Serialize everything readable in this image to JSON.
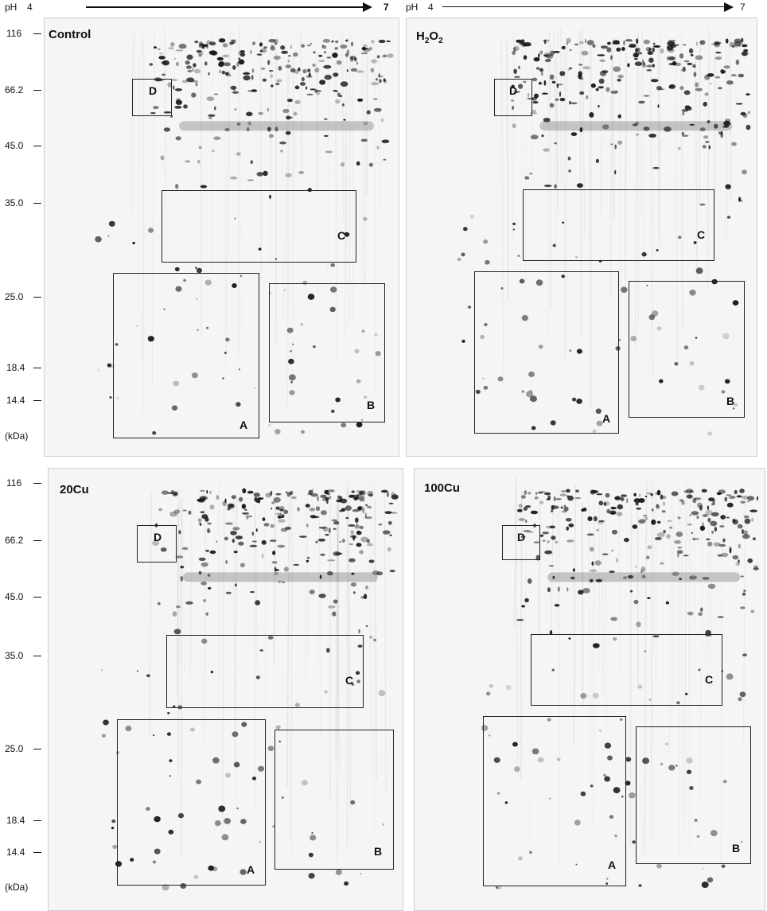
{
  "ph_axis": {
    "ph_label": "pH",
    "start": "4",
    "end": "7"
  },
  "mw_unit": "(kDa)",
  "mw_markers": [
    "116",
    "66.2",
    "45.0",
    "35.0",
    "25.0",
    "18.4",
    "14.4"
  ],
  "gels": [
    {
      "id": "control",
      "title": "Control",
      "boxes": [
        "D",
        "C",
        "A",
        "B"
      ]
    },
    {
      "id": "h2o2",
      "title_main": "H",
      "title_sub1": "2",
      "title_mid": "O",
      "title_sub2": "2",
      "boxes": [
        "D",
        "C",
        "A",
        "B"
      ]
    },
    {
      "id": "20cu",
      "title": "20Cu",
      "boxes": [
        "D",
        "C",
        "A",
        "B"
      ]
    },
    {
      "id": "100cu",
      "title": "100Cu",
      "boxes": [
        "D",
        "C",
        "A",
        "B"
      ]
    }
  ],
  "colors": {
    "background": "#f5f5f5",
    "spot": "#111111",
    "box": "#222222"
  }
}
